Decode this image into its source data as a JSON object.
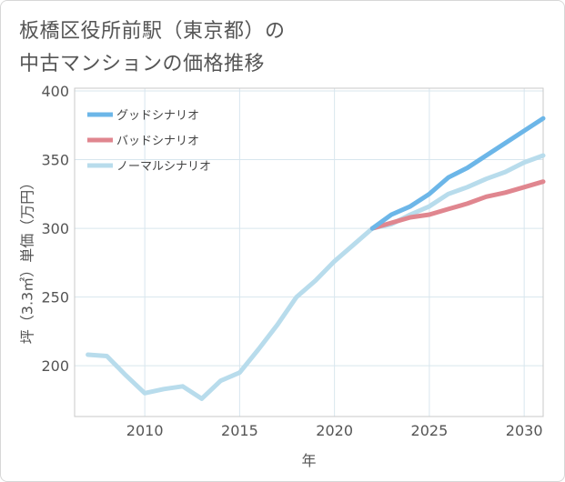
{
  "title_line1": "板橋区役所前駅（東京都）の",
  "title_line2": "中古マンションの価格推移",
  "chart_data": {
    "type": "line",
    "xlabel": "年",
    "ylabel": "坪（3.3㎡）単価（万円）",
    "xlim": [
      2006.3,
      2031
    ],
    "ylim": [
      163,
      402
    ],
    "xticks": [
      2010,
      2015,
      2020,
      2025,
      2030
    ],
    "yticks": [
      200,
      250,
      300,
      350,
      400
    ],
    "grid": true,
    "legend_position": "top-left",
    "series": [
      {
        "name": "グッドシナリオ",
        "color": "#6cb6e8",
        "x": [
          2022,
          2023,
          2024,
          2025,
          2026,
          2027,
          2028,
          2029,
          2030,
          2031
        ],
        "y": [
          300,
          310,
          316,
          325,
          337,
          344,
          353,
          362,
          371,
          380
        ]
      },
      {
        "name": "バッドシナリオ",
        "color": "#e0868f",
        "x": [
          2022,
          2023,
          2024,
          2025,
          2026,
          2027,
          2028,
          2029,
          2030,
          2031
        ],
        "y": [
          300,
          304,
          308,
          310,
          314,
          318,
          323,
          326,
          330,
          334
        ]
      },
      {
        "name": "ノーマルシナリオ",
        "color": "#b8dcec",
        "x": [
          2007,
          2008,
          2009,
          2010,
          2011,
          2012,
          2013,
          2014,
          2015,
          2016,
          2017,
          2018,
          2019,
          2020,
          2021,
          2022,
          2023,
          2024,
          2025,
          2026,
          2027,
          2028,
          2029,
          2030,
          2031
        ],
        "y": [
          208,
          207,
          193,
          180,
          183,
          185,
          176,
          189,
          195,
          212,
          230,
          250,
          262,
          276,
          288,
          300,
          303,
          310,
          316,
          325,
          330,
          336,
          341,
          348,
          353
        ]
      }
    ]
  }
}
